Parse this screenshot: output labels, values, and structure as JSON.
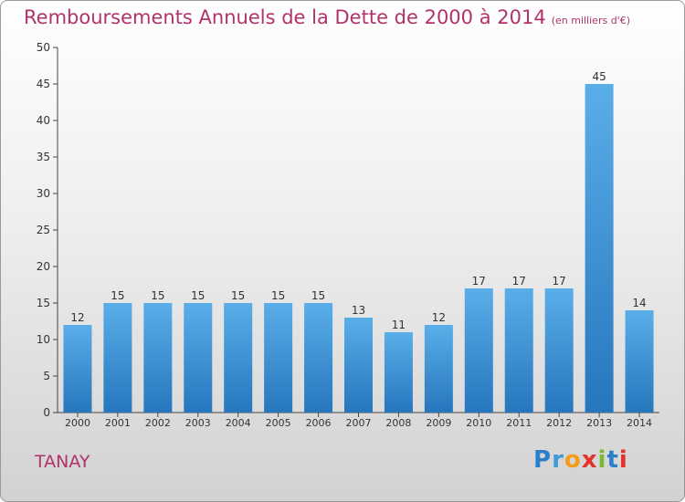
{
  "title": "Remboursements Annuels de la Dette de 2000 à 2014",
  "unit": "(en milliers d'€)",
  "town": "TANAY",
  "brand": "Proxiti",
  "chart_data": {
    "type": "bar",
    "categories": [
      "2000",
      "2001",
      "2002",
      "2003",
      "2004",
      "2005",
      "2006",
      "2007",
      "2008",
      "2009",
      "2010",
      "2011",
      "2012",
      "2013",
      "2014"
    ],
    "values": [
      12,
      15,
      15,
      15,
      15,
      15,
      15,
      13,
      11,
      12,
      17,
      17,
      17,
      45,
      14
    ],
    "ylim": [
      0,
      50
    ],
    "yticks": [
      0,
      5,
      10,
      15,
      20,
      25,
      30,
      35,
      40,
      45,
      50
    ],
    "bar_color": "#3d8fd6",
    "grid": false
  }
}
